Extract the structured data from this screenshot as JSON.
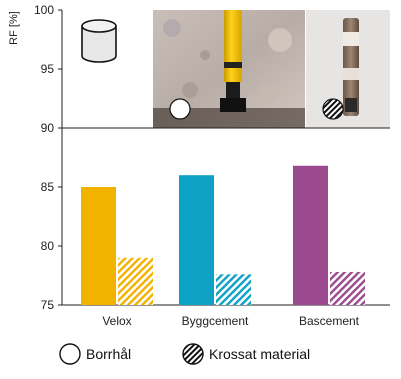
{
  "chart_data": {
    "type": "bar",
    "ylabel": "RF [%]",
    "ylim": [
      75,
      100
    ],
    "yticks": [
      75,
      80,
      85,
      90,
      95,
      100
    ],
    "categories": [
      "Velox",
      "Byggcement",
      "Bascement"
    ],
    "series": [
      {
        "name": "Borrhål",
        "values": [
          85.0,
          86.0,
          86.8
        ],
        "pattern": "solid"
      },
      {
        "name": "Krossat material",
        "values": [
          79.0,
          77.6,
          77.8
        ],
        "pattern": "hatched"
      }
    ],
    "colors": {
      "Velox": "#f2b200",
      "Byggcement": "#0da2c6",
      "Bascement": "#9b4a8f"
    },
    "legend_position": "bottom",
    "photos": [
      "cylinder-sample-icon",
      "borehole-photo",
      "crushed-material-photo"
    ]
  }
}
